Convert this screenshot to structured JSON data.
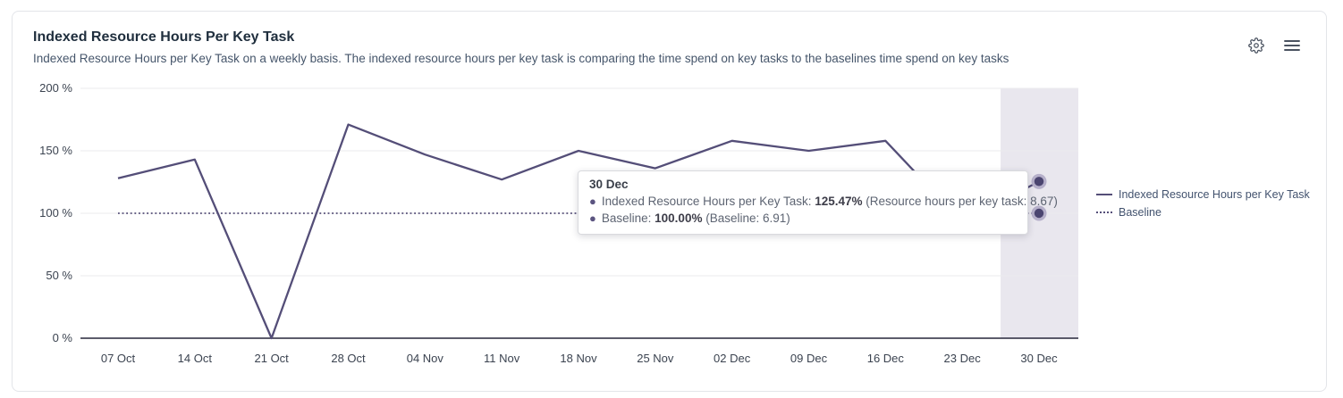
{
  "header": {
    "title": "Indexed Resource Hours Per Key Task",
    "subtitle": "Indexed Resource Hours per Key Task on a weekly basis. The indexed resource hours per key task is comparing the time spend on key tasks to the baselines time spend on key tasks"
  },
  "toolbar": {
    "settings_icon": "gear-icon",
    "menu_icon": "hamburger-menu-icon"
  },
  "chart_data": {
    "type": "line",
    "title": "Indexed Resource Hours Per Key Task",
    "xlabel": "",
    "ylabel": "",
    "ylim": [
      0,
      200
    ],
    "grid": "horizontal",
    "legend_position": "right",
    "categories": [
      "07 Oct",
      "14 Oct",
      "21 Oct",
      "28 Oct",
      "04 Nov",
      "11 Nov",
      "18 Nov",
      "25 Nov",
      "02 Dec",
      "09 Dec",
      "16 Dec",
      "23 Dec",
      "30 Dec"
    ],
    "series": [
      {
        "name": "Indexed Resource Hours per Key Task",
        "style": "solid",
        "values": [
          128,
          143,
          0,
          171,
          147,
          127,
          150,
          136,
          158,
          150,
          158,
          93,
          125.47
        ]
      },
      {
        "name": "Baseline",
        "style": "dotted",
        "values": [
          100,
          100,
          100,
          100,
          100,
          100,
          100,
          100,
          100,
          100,
          100,
          100,
          100
        ]
      }
    ],
    "ytick_values": [
      0,
      50,
      100,
      150,
      200
    ],
    "ytick_labels": [
      "0 %",
      "50 %",
      "100 %",
      "150 %",
      "200 %"
    ],
    "highlight_band_category": "30 Dec"
  },
  "tooltip": {
    "title": "30 Dec",
    "rows": [
      {
        "label": "Indexed Resource Hours per Key Task: ",
        "value": "125.47%",
        "detail": " (Resource hours per key task: 8.67)"
      },
      {
        "label": "Baseline: ",
        "value": "100.00%",
        "detail": " (Baseline: 6.91)"
      }
    ]
  },
  "legend": {
    "items": [
      {
        "label": "Indexed Resource Hours per Key Task",
        "style": "solid"
      },
      {
        "label": "Baseline",
        "style": "dotted"
      }
    ]
  },
  "colors": {
    "series": "#544e78",
    "baseline": "#544e78",
    "band": "#e9e7ee",
    "grid": "#ebebee",
    "axis": "#27273a",
    "marker_ring": "#b6b0ca",
    "marker_core": "#4b4570"
  }
}
